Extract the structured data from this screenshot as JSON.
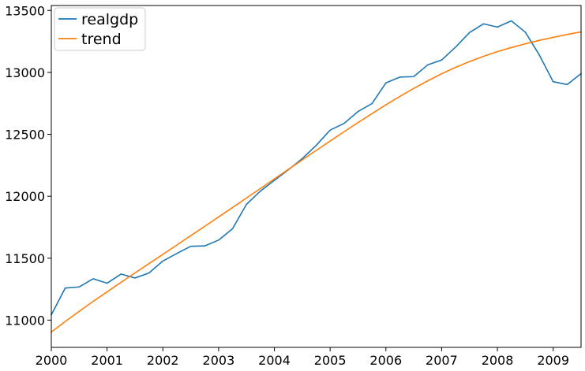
{
  "chart_data": {
    "type": "line",
    "title": "",
    "xlabel": "",
    "ylabel": "",
    "xlim": [
      2000.0,
      2009.5
    ],
    "ylim": [
      10780,
      13540
    ],
    "xticks": [
      {
        "value": 2000,
        "label": "2000"
      },
      {
        "value": 2001,
        "label": "2001"
      },
      {
        "value": 2002,
        "label": "2002"
      },
      {
        "value": 2003,
        "label": "2003"
      },
      {
        "value": 2004,
        "label": "2004"
      },
      {
        "value": 2005,
        "label": "2005"
      },
      {
        "value": 2006,
        "label": "2006"
      },
      {
        "value": 2007,
        "label": "2007"
      },
      {
        "value": 2008,
        "label": "2008"
      },
      {
        "value": 2009,
        "label": "2009"
      }
    ],
    "yticks": [
      {
        "value": 11000,
        "label": "11000"
      },
      {
        "value": 11500,
        "label": "11500"
      },
      {
        "value": 12000,
        "label": "12000"
      },
      {
        "value": 12500,
        "label": "12500"
      },
      {
        "value": 13000,
        "label": "13000"
      },
      {
        "value": 13500,
        "label": "13500"
      }
    ],
    "grid": false,
    "legend_position": "top-left",
    "x": [
      "2000Q1",
      "2000Q2",
      "2000Q3",
      "2000Q4",
      "2001Q1",
      "2001Q2",
      "2001Q3",
      "2001Q4",
      "2002Q1",
      "2002Q2",
      "2002Q3",
      "2002Q4",
      "2003Q1",
      "2003Q2",
      "2003Q3",
      "2003Q4",
      "2004Q1",
      "2004Q2",
      "2004Q3",
      "2004Q4",
      "2005Q1",
      "2005Q2",
      "2005Q3",
      "2005Q4",
      "2006Q1",
      "2006Q2",
      "2006Q3",
      "2006Q4",
      "2007Q1",
      "2007Q2",
      "2007Q3",
      "2007Q4",
      "2008Q1",
      "2008Q2",
      "2008Q3",
      "2008Q4",
      "2009Q1",
      "2009Q2",
      "2009Q3"
    ],
    "series": [
      {
        "name": "realgdp",
        "color": "#1f77b4",
        "values": [
          11043,
          11259,
          11268,
          11334,
          11298,
          11372,
          11340,
          11380,
          11477,
          11538,
          11596,
          11599,
          11646,
          11738,
          11935,
          12042,
          12128,
          12213,
          12304,
          12411,
          12534,
          12588,
          12684,
          12748,
          12915,
          12962,
          12966,
          13061,
          13100,
          13204,
          13322,
          13392,
          13366,
          13416,
          13325,
          13142,
          12925,
          12902,
          12990
        ]
      },
      {
        "name": "trend",
        "color": "#ff7f0e",
        "values": [
          10904,
          10989,
          11071,
          11151,
          11228,
          11305,
          11381,
          11456,
          11531,
          11606,
          11682,
          11757,
          11833,
          11909,
          11986,
          12063,
          12140,
          12217,
          12293,
          12370,
          12446,
          12521,
          12595,
          12667,
          12738,
          12806,
          12871,
          12932,
          12989,
          13041,
          13088,
          13130,
          13168,
          13201,
          13231,
          13258,
          13283,
          13306,
          13327
        ]
      }
    ]
  }
}
